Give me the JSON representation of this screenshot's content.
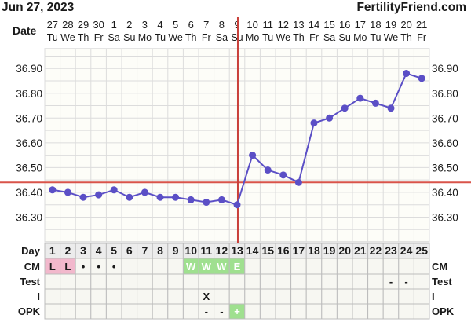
{
  "header": {
    "date": "Jun 27, 2023",
    "site": "FertilityFriend.com",
    "date_label": "Date"
  },
  "chart_data": {
    "type": "line",
    "ylim": [
      36.2,
      36.98
    ],
    "y_ticks": [
      "36.30",
      "36.40",
      "36.50",
      "36.60",
      "36.70",
      "36.80",
      "36.90"
    ],
    "dates": [
      "27",
      "28",
      "29",
      "30",
      "1",
      "2",
      "3",
      "4",
      "5",
      "6",
      "7",
      "8",
      "9",
      "10",
      "11",
      "12",
      "13",
      "14",
      "15",
      "16",
      "17",
      "18",
      "19",
      "20",
      "21"
    ],
    "weekdays": [
      "Tu",
      "We",
      "Th",
      "Fr",
      "Sa",
      "Su",
      "Mo",
      "Tu",
      "We",
      "Th",
      "Fr",
      "Sa",
      "Su",
      "Mo",
      "Tu",
      "We",
      "Th",
      "Fr",
      "Sa",
      "Su",
      "Mo",
      "Tu",
      "We",
      "Th",
      "Fr"
    ],
    "cycle_days": [
      "1",
      "2",
      "3",
      "4",
      "5",
      "6",
      "7",
      "8",
      "9",
      "10",
      "11",
      "12",
      "13",
      "14",
      "15",
      "16",
      "17",
      "18",
      "19",
      "20",
      "21",
      "22",
      "23",
      "24",
      "25"
    ],
    "temperatures": [
      36.41,
      36.4,
      36.38,
      36.39,
      36.41,
      36.38,
      36.4,
      36.38,
      36.38,
      36.37,
      36.36,
      36.37,
      36.35,
      36.55,
      36.49,
      36.47,
      36.44,
      36.68,
      36.7,
      36.74,
      36.78,
      36.76,
      36.74,
      36.88,
      36.86
    ],
    "coverline": 36.44,
    "ovulation_day": 13,
    "colors": {
      "line": "#5b4fc6",
      "coverline": "#d9544a",
      "ovulation": "#c9403a",
      "grid": "#dcdcdc",
      "plot_bg": "#fdfdf8",
      "menses_cell": "#f2b8cc",
      "fertile_cell": "#9fe08f",
      "grey_cell": "#e8e8e8"
    }
  },
  "row_labels": {
    "day": "Day",
    "cm": "CM",
    "test": "Test",
    "intercourse": "I",
    "opk": "OPK"
  },
  "rows": {
    "cm": [
      "L",
      "L",
      "•",
      "•",
      "•",
      "",
      "",
      "",
      "",
      "W",
      "W",
      "W",
      "E",
      "",
      "",
      "",
      "",
      "",
      "",
      "",
      "",
      "",
      "",
      "",
      ""
    ],
    "test": [
      "",
      "",
      "",
      "",
      "",
      "",
      "",
      "",
      "",
      "",
      "",
      "",
      "",
      "",
      "",
      "",
      "",
      "",
      "",
      "",
      "",
      "",
      "-",
      "-",
      ""
    ],
    "intercourse": [
      "",
      "",
      "",
      "",
      "",
      "",
      "",
      "",
      "",
      "",
      "X",
      "",
      "",
      "",
      "",
      "",
      "",
      "",
      "",
      "",
      "",
      "",
      "",
      "",
      ""
    ],
    "opk": [
      "",
      "",
      "",
      "",
      "",
      "",
      "",
      "",
      "",
      "",
      "-",
      "-",
      "+",
      "",
      "",
      "",
      "",
      "",
      "",
      "",
      "",
      "",
      "",
      "",
      ""
    ]
  }
}
